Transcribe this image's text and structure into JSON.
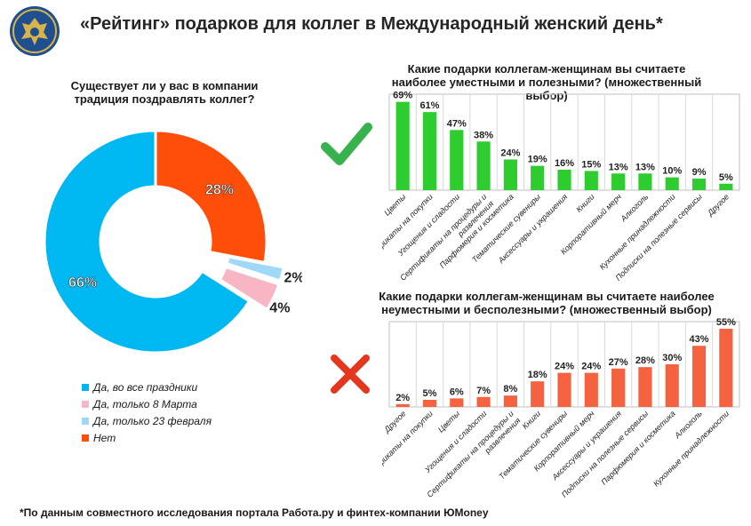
{
  "header": {
    "title": "«Рейтинг» подарков для коллег в Международный женский день*"
  },
  "donut": {
    "question": "Существует ли у вас в компании традиция поздравлять коллег?"
  },
  "footnote": "*По данным совместного исследования портала Работа.ру и финтех-компании ЮMoney",
  "chart_data": [
    {
      "type": "pie",
      "title": "Существует ли у вас в компании традиция поздравлять коллег?",
      "categories": [
        "Нет",
        "Да, только 23 февраля",
        "Да, только 8 Марта",
        "Да, во все праздники"
      ],
      "values": [
        28,
        2,
        4,
        66
      ],
      "labels": [
        "28%",
        "2%",
        "4%",
        "66%"
      ],
      "colors": [
        "#ff4d0a",
        "#9fd9f7",
        "#f8b5c3",
        "#00b8f1"
      ],
      "legend_order": [
        3,
        2,
        1,
        0
      ],
      "legend": [
        "Да, во все праздники",
        "Да, только 8 Марта",
        "Да, только 23 февраля",
        "Нет"
      ],
      "legend_placement": "bottom"
    },
    {
      "type": "bar",
      "title": "Какие подарки коллегам-женщинам вы считаете наиболее уместными и полезными? (множественный выбор)",
      "categories": [
        "Цветы",
        "Сертификаты на покупки",
        "Угощения и сладости",
        "Сертификаты на процедуры и развлечения",
        "Парфюмерия и косметика",
        "Тематические сувениры",
        "Аксессуары и украшения",
        "Книги",
        "Корпоративный мерч",
        "Алкоголь",
        "Кухонные принадлежности",
        "Подписки на полезные сервисы",
        "Другое"
      ],
      "values": [
        69,
        61,
        47,
        38,
        24,
        19,
        16,
        15,
        13,
        13,
        10,
        9,
        5
      ],
      "labels": [
        "69%",
        "61%",
        "47%",
        "38%",
        "24%",
        "19%",
        "16%",
        "15%",
        "13%",
        "13%",
        "10%",
        "9%",
        "5%"
      ],
      "color": "#2ecc2e",
      "ylim": [
        0,
        75
      ],
      "grid": true
    },
    {
      "type": "bar",
      "title": "Какие подарки коллегам-женщинам вы считаете наиболее неуместными и бесполезными? (множественный выбор)",
      "categories": [
        "Другое",
        "Сертификаты на покупки",
        "Цветы",
        "Угощения и сладости",
        "Сертификаты на процедуры и развлечения",
        "Книги",
        "Тематические сувениры",
        "Корпоративный мерч",
        "Аксессуары и украшения",
        "Подписки на полезные сервисы",
        "Парфюмерия и косметика",
        "Алкоголь",
        "Кухонные принадлежности"
      ],
      "values": [
        2,
        5,
        6,
        7,
        8,
        18,
        24,
        24,
        27,
        28,
        30,
        43,
        55
      ],
      "labels": [
        "2%",
        "5%",
        "6%",
        "7%",
        "8%",
        "18%",
        "24%",
        "24%",
        "27%",
        "28%",
        "30%",
        "43%",
        "55%"
      ],
      "color": "#f4623f",
      "ylim": [
        0,
        60
      ],
      "grid": true
    }
  ]
}
